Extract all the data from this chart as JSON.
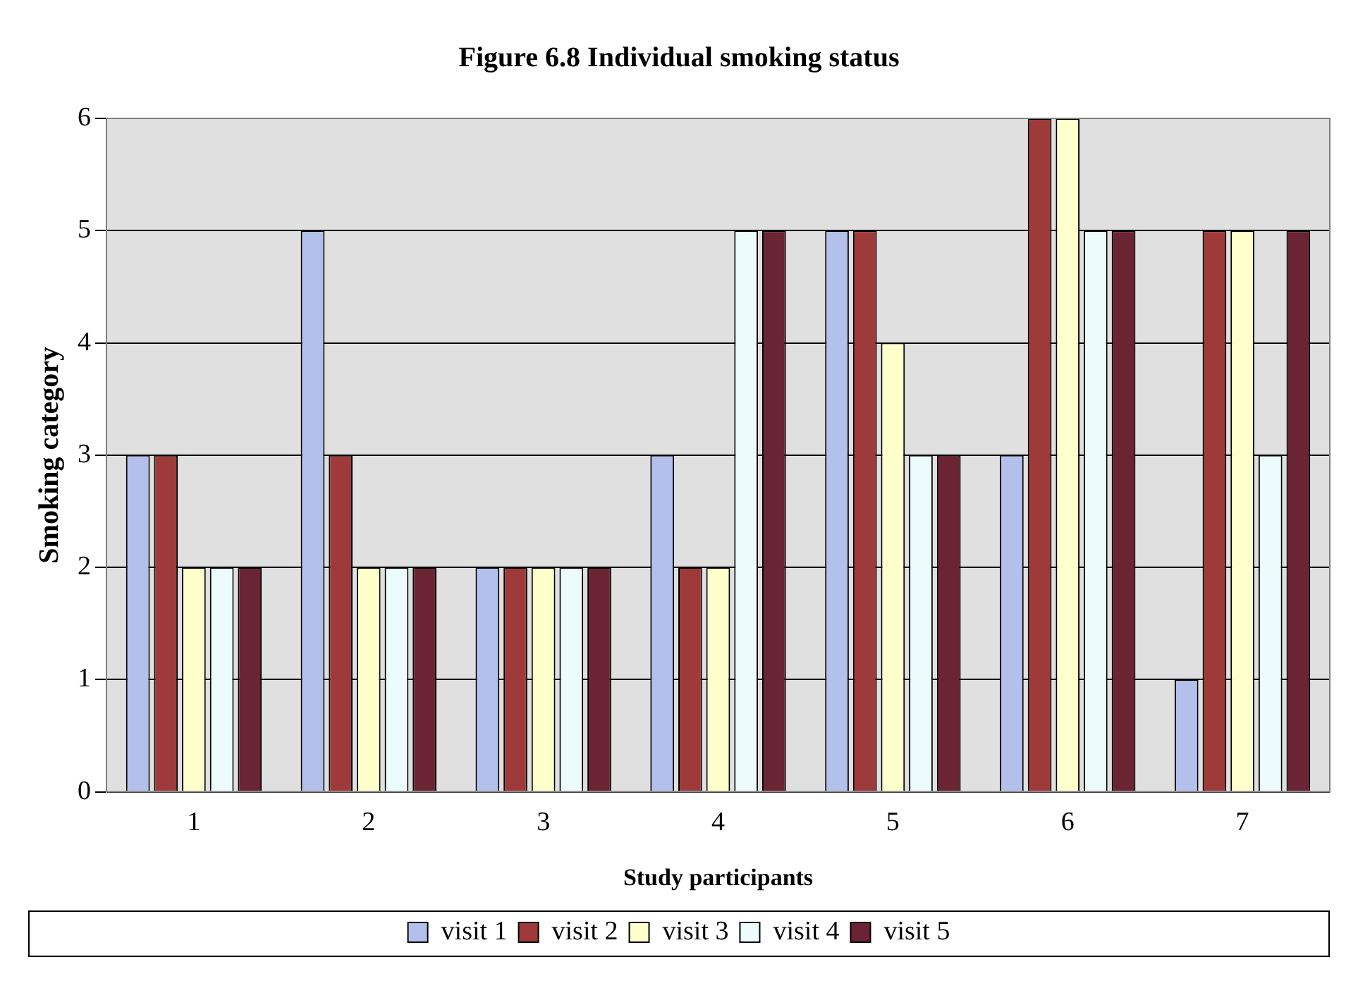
{
  "chart_data": {
    "type": "bar",
    "title": "Figure 6.8 Individual smoking status",
    "xlabel": "Study participants",
    "ylabel": "Smoking category",
    "categories": [
      "1",
      "2",
      "3",
      "4",
      "5",
      "6",
      "7"
    ],
    "series": [
      {
        "name": "visit 1",
        "color": "#b4c0ec",
        "values": [
          3,
          5,
          2,
          3,
          5,
          3,
          1
        ]
      },
      {
        "name": "visit 2",
        "color": "#9e3a3a",
        "values": [
          3,
          3,
          2,
          2,
          5,
          6,
          5
        ]
      },
      {
        "name": "visit 3",
        "color": "#ffffcc",
        "values": [
          2,
          2,
          2,
          2,
          4,
          6,
          5
        ]
      },
      {
        "name": "visit 4",
        "color": "#ecfcfc",
        "values": [
          2,
          2,
          2,
          5,
          3,
          5,
          3
        ]
      },
      {
        "name": "visit 5",
        "color": "#6b2434",
        "values": [
          2,
          2,
          2,
          5,
          3,
          5,
          5
        ]
      }
    ],
    "ylim": [
      0,
      6
    ],
    "yticks": [
      0,
      1,
      2,
      3,
      4,
      5,
      6
    ],
    "grid": "y",
    "legend": "bottom"
  }
}
